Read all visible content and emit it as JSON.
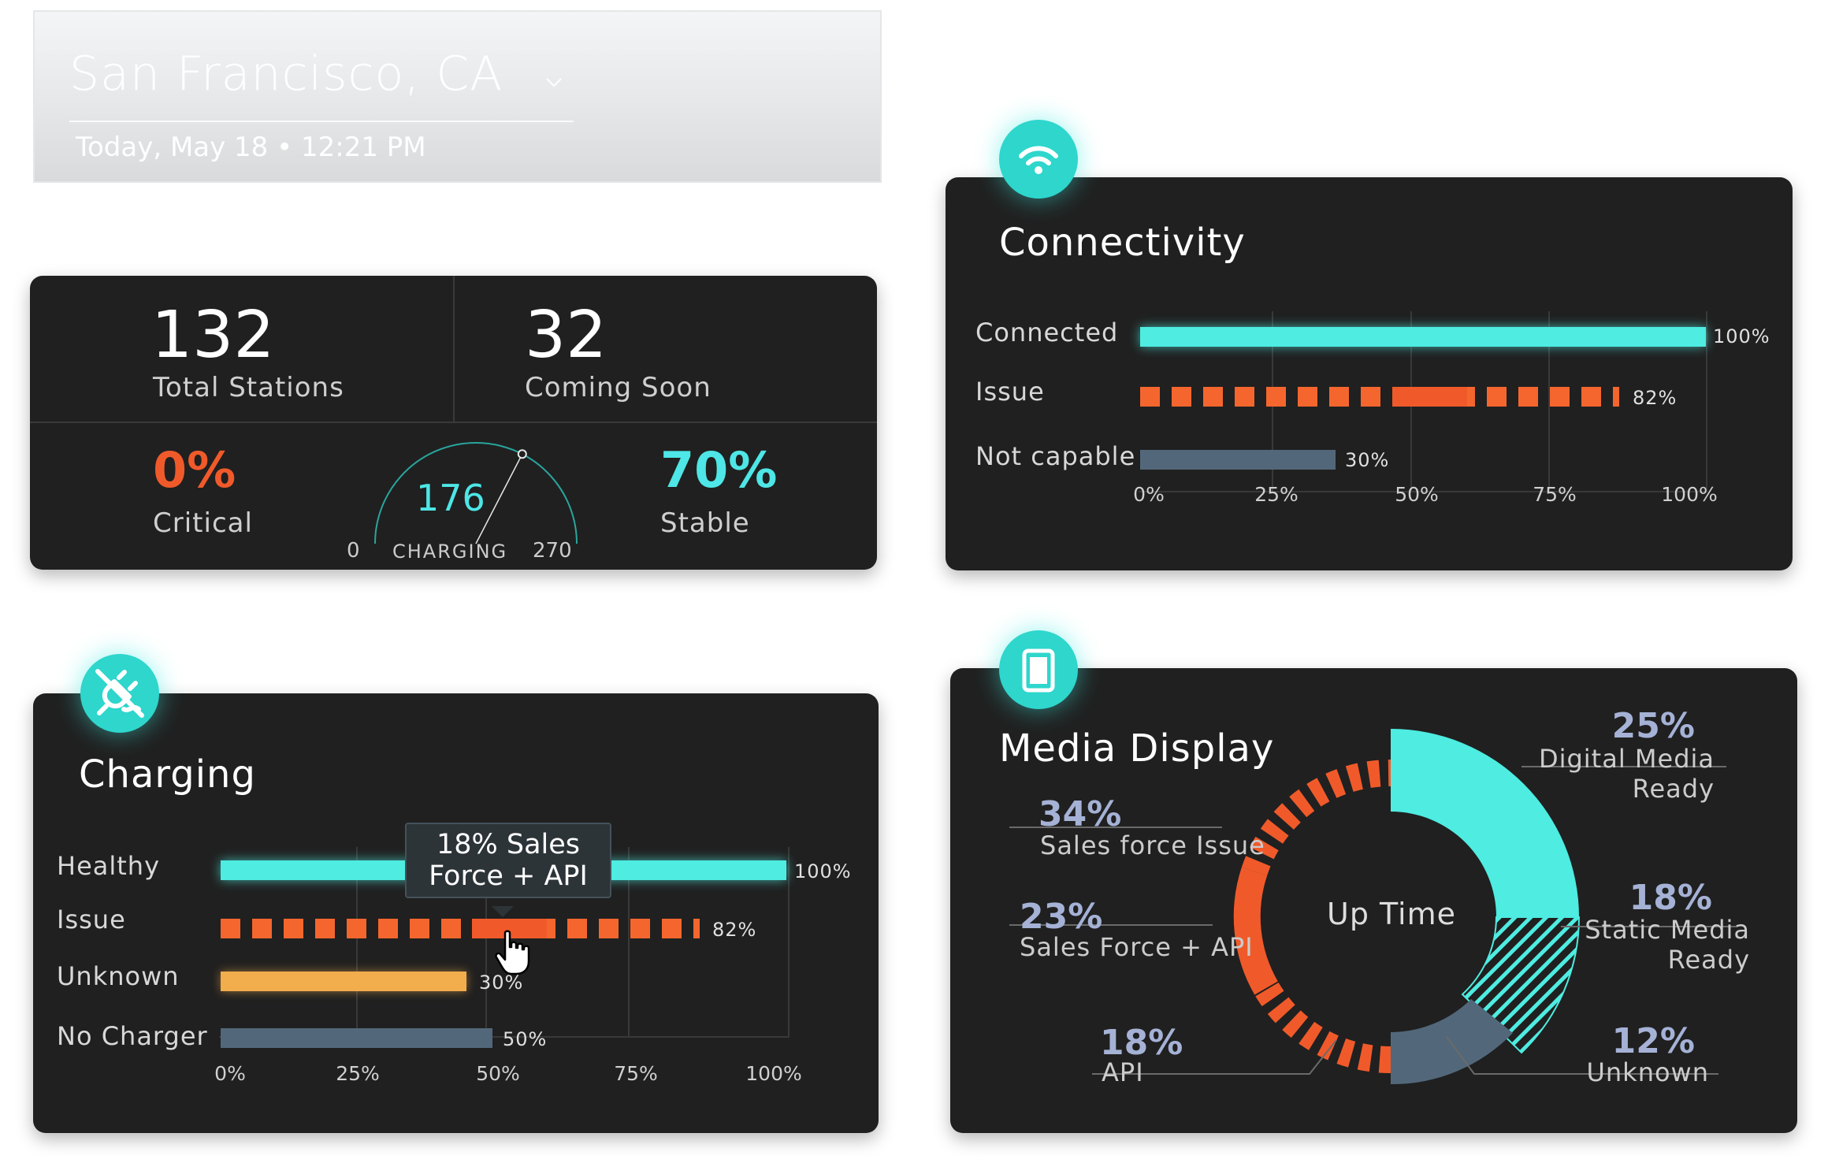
{
  "location": {
    "city": "San Francisco, CA",
    "datetime": "Today, May 18 • 12:21 PM",
    "chevron_icon": "chevron-down-icon"
  },
  "summary": {
    "total_stations": "132",
    "total_stations_label": "Total Stations",
    "coming_soon": "32",
    "coming_soon_label": "Coming Soon",
    "critical_pct": "0%",
    "critical_label": "Critical",
    "stable_pct": "70%",
    "stable_label": "Stable",
    "gauge": {
      "value": "176",
      "label": "CHARGING",
      "min": "0",
      "max": "270",
      "value_num": 176,
      "max_num": 270
    },
    "colors": {
      "critical": "#f05a2a",
      "stable": "#4ee6e6"
    }
  },
  "connectivity": {
    "title": "Connectivity",
    "icon": "wifi-icon",
    "rows": [
      {
        "label": "Connected",
        "value_label": "100%",
        "value": 100
      },
      {
        "label": "Issue",
        "value_label": "82%",
        "value": 82
      },
      {
        "label": "Not capable",
        "value_label": "30%",
        "value": 30
      }
    ],
    "ticks": [
      "0%",
      "25%",
      "50%",
      "75%",
      "100%"
    ]
  },
  "charging": {
    "title": "Charging",
    "icon": "unplugged-icon",
    "rows": [
      {
        "label": "Healthy",
        "value_label": "100%",
        "value": 100
      },
      {
        "label": "Issue",
        "value_label": "82%",
        "value": 82
      },
      {
        "label": "Unknown",
        "value_label": "30%",
        "value": 30
      },
      {
        "label": "No Charger",
        "value_label": "50%",
        "value": 50
      }
    ],
    "ticks": [
      "0%",
      "25%",
      "50%",
      "75%",
      "100%"
    ],
    "tooltip": {
      "line1": "18% Sales",
      "line2": "Force + API"
    },
    "cursor_icon": "hand-pointer-icon"
  },
  "media": {
    "title": "Media Display",
    "icon": "tablet-icon",
    "center_label": "Up Time",
    "segments": [
      {
        "pct": "25%",
        "line1": "Digital Media",
        "line2": "Ready"
      },
      {
        "pct": "18%",
        "line1": "Static Media",
        "line2": "Ready"
      },
      {
        "pct": "12%",
        "line1": "Unknown",
        "line2": ""
      },
      {
        "pct": "18%",
        "line1": "API",
        "line2": ""
      },
      {
        "pct": "23%",
        "line1": "Sales Force + API",
        "line2": ""
      },
      {
        "pct": "34%",
        "line1": "Sales force Issue",
        "line2": ""
      }
    ]
  }
}
